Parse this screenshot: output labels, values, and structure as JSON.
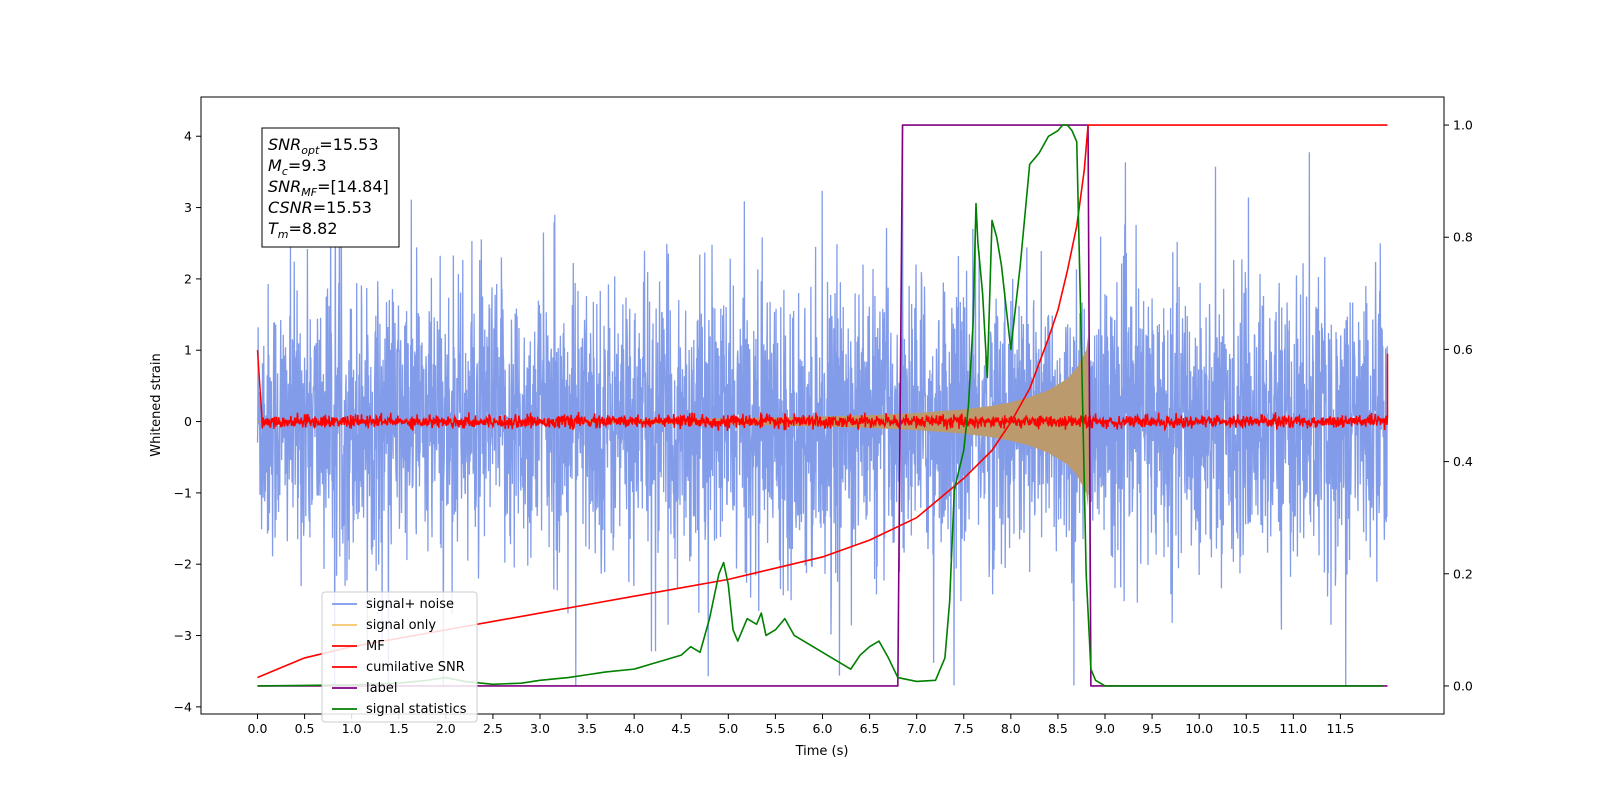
{
  "chart_data": {
    "type": "line",
    "xlabel": "Time (s)",
    "ylabel": "Whitened strain",
    "xlim": [
      -0.6,
      12.6
    ],
    "ylim_left": [
      -4.1,
      4.55
    ],
    "ylim_right": [
      -0.05,
      1.05
    ],
    "x_ticks": [
      "0.0",
      "0.5",
      "1.0",
      "1.5",
      "2.0",
      "2.5",
      "3.0",
      "3.5",
      "4.0",
      "4.5",
      "5.0",
      "5.5",
      "6.0",
      "6.5",
      "7.0",
      "7.5",
      "8.0",
      "8.5",
      "9.0",
      "9.5",
      "10.0",
      "10.5",
      "11.0",
      "11.5"
    ],
    "y_ticks_left": [
      "4",
      "3",
      "2",
      "1",
      "0",
      "−1",
      "−2",
      "−3",
      "−4"
    ],
    "y_ticks_right": [
      "1.0",
      "0.8",
      "0.6",
      "0.4",
      "0.2",
      "0.0"
    ],
    "annotation": {
      "lines": [
        {
          "base": "SNR",
          "sub": "opt",
          "value": "=15.53"
        },
        {
          "base": "M",
          "sub": "c",
          "value": "=9.3"
        },
        {
          "base": "SNR",
          "sub": "MF",
          "value": "=[14.84]"
        },
        {
          "base": "CSNR",
          "sub": "",
          "value": "=15.53"
        },
        {
          "base": "T",
          "sub": "m",
          "value": "=8.82"
        }
      ]
    },
    "legend_position": "lower-left",
    "series": [
      {
        "name": "signal+ noise",
        "color": "#7b97e8",
        "axis": "left",
        "kind": "noise",
        "x_range": [
          0.0,
          12.0
        ],
        "amplitude": 2.4
      },
      {
        "name": "signal only",
        "color": "#f5c66a",
        "axis": "left",
        "kind": "chirp_envelope",
        "x": [
          0.0,
          2.0,
          4.0,
          5.0,
          6.0,
          6.5,
          7.0,
          7.5,
          7.8,
          8.0,
          8.2,
          8.4,
          8.6,
          8.7,
          8.8,
          8.82,
          8.85
        ],
        "y": [
          0.01,
          0.015,
          0.03,
          0.045,
          0.07,
          0.09,
          0.12,
          0.17,
          0.22,
          0.27,
          0.34,
          0.44,
          0.6,
          0.75,
          1.0,
          1.2,
          0.0
        ]
      },
      {
        "name": "MF",
        "color": "#ff0000",
        "axis": "left",
        "kind": "noise",
        "x_range": [
          0.0,
          12.0
        ],
        "amplitude": 0.12,
        "edge_values": [
          1.0,
          0.95
        ]
      },
      {
        "name": "cumilative SNR",
        "color": "#ff0000",
        "axis": "right",
        "x": [
          0.0,
          0.5,
          1.0,
          1.5,
          2.0,
          2.5,
          3.0,
          3.5,
          4.0,
          4.5,
          5.0,
          5.5,
          6.0,
          6.5,
          7.0,
          7.5,
          7.8,
          8.0,
          8.2,
          8.4,
          8.5,
          8.6,
          8.7,
          8.78,
          8.82,
          9.0,
          10.0,
          11.0,
          12.0
        ],
        "y": [
          0.015,
          0.05,
          0.07,
          0.085,
          0.1,
          0.115,
          0.13,
          0.145,
          0.16,
          0.175,
          0.19,
          0.21,
          0.23,
          0.26,
          0.3,
          0.37,
          0.42,
          0.47,
          0.53,
          0.62,
          0.67,
          0.74,
          0.82,
          0.92,
          1.0,
          1.0,
          1.0,
          1.0,
          1.0
        ]
      },
      {
        "name": "label",
        "color": "#800080",
        "axis": "right",
        "x": [
          0.0,
          6.8,
          6.85,
          8.82,
          8.85,
          12.0
        ],
        "y": [
          0.0,
          0.0,
          1.0,
          1.0,
          0.0,
          0.0
        ]
      },
      {
        "name": "signal statistics",
        "color": "#008000",
        "axis": "right",
        "x": [
          0.0,
          0.5,
          1.0,
          1.5,
          1.8,
          2.0,
          2.2,
          2.5,
          2.8,
          3.0,
          3.3,
          3.5,
          3.7,
          4.0,
          4.2,
          4.3,
          4.5,
          4.6,
          4.7,
          4.8,
          4.9,
          4.95,
          5.0,
          5.05,
          5.1,
          5.2,
          5.3,
          5.35,
          5.4,
          5.5,
          5.6,
          5.7,
          5.8,
          5.9,
          6.0,
          6.1,
          6.2,
          6.3,
          6.4,
          6.5,
          6.6,
          6.7,
          6.8,
          7.0,
          7.2,
          7.3,
          7.35,
          7.4,
          7.5,
          7.55,
          7.6,
          7.63,
          7.65,
          7.7,
          7.75,
          7.8,
          7.85,
          7.9,
          8.0,
          8.1,
          8.2,
          8.3,
          8.4,
          8.5,
          8.55,
          8.6,
          8.65,
          8.7,
          8.75,
          8.8,
          8.85,
          8.9,
          9.0,
          9.5,
          10.0,
          11.0,
          11.95
        ],
        "y": [
          0.0,
          0.001,
          0.002,
          0.005,
          0.01,
          0.015,
          0.008,
          0.003,
          0.005,
          0.01,
          0.015,
          0.02,
          0.025,
          0.03,
          0.04,
          0.045,
          0.055,
          0.07,
          0.06,
          0.12,
          0.2,
          0.22,
          0.18,
          0.1,
          0.08,
          0.12,
          0.11,
          0.13,
          0.09,
          0.1,
          0.12,
          0.09,
          0.08,
          0.07,
          0.06,
          0.05,
          0.04,
          0.03,
          0.055,
          0.07,
          0.08,
          0.05,
          0.015,
          0.008,
          0.01,
          0.05,
          0.15,
          0.35,
          0.42,
          0.5,
          0.65,
          0.86,
          0.79,
          0.7,
          0.55,
          0.83,
          0.8,
          0.75,
          0.6,
          0.75,
          0.93,
          0.95,
          0.98,
          0.99,
          1.0,
          1.0,
          0.99,
          0.97,
          0.6,
          0.2,
          0.03,
          0.01,
          0.0,
          0.0,
          0.0,
          0.0,
          0.0
        ]
      }
    ]
  }
}
